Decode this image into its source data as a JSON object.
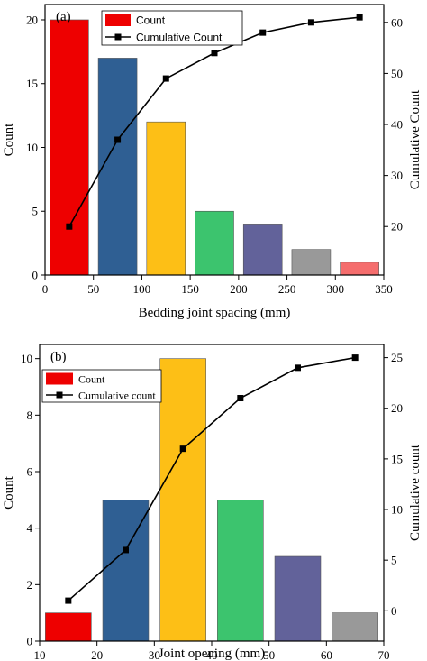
{
  "chart_data": [
    {
      "type": "bar",
      "panel_label": "(a)",
      "x": [
        25,
        75,
        125,
        175,
        225,
        275,
        325
      ],
      "bar_width": 40,
      "bar_colors": [
        "#ee0000",
        "#2f5f93",
        "#fdbf16",
        "#3cc46e",
        "#62629a",
        "#999999",
        "#f56d6d"
      ],
      "series": [
        {
          "name": "Count",
          "values": [
            20,
            17,
            12,
            5,
            4,
            2,
            1
          ]
        },
        {
          "name": "Cumulative Count",
          "values": [
            20,
            37,
            49,
            54,
            58,
            60,
            61
          ],
          "axis": "right",
          "type": "line"
        }
      ],
      "xlabel": "Bedding joint spacing (mm)",
      "ylabel": "Count",
      "y2label": "Cumulative Count",
      "xlim": [
        0,
        350
      ],
      "ylim": [
        0,
        21.2
      ],
      "y2lim": [
        10.5,
        63.5
      ],
      "xticks": [
        0,
        50,
        100,
        150,
        200,
        250,
        300,
        350
      ],
      "yticks": [
        0,
        5,
        10,
        15,
        20
      ],
      "y2ticks": [
        20,
        30,
        40,
        50,
        60
      ],
      "legend": [
        "Count",
        "Cumulative Count"
      ],
      "legend_placement": "top-center",
      "grid": false
    },
    {
      "type": "bar",
      "panel_label": "(b)",
      "x": [
        15,
        25,
        35,
        45,
        55,
        65
      ],
      "bar_width": 8,
      "bar_colors": [
        "#ee0000",
        "#2f5f93",
        "#fdbf16",
        "#3cc46e",
        "#62629a",
        "#999999"
      ],
      "series": [
        {
          "name": "Count",
          "values": [
            1,
            5,
            10,
            5,
            3,
            1
          ]
        },
        {
          "name": "Cumulative count",
          "values": [
            1,
            6,
            16,
            21,
            24,
            25
          ],
          "axis": "right",
          "type": "line"
        }
      ],
      "xlabel": "Joint opening (mm)",
      "ylabel": "Count",
      "y2label": "Cumulative count",
      "xlim": [
        10,
        70
      ],
      "ylim": [
        0,
        10.5
      ],
      "y2lim": [
        -3,
        26.3
      ],
      "xticks": [
        10,
        20,
        30,
        40,
        50,
        60,
        70
      ],
      "yticks": [
        0,
        2,
        4,
        6,
        8,
        10
      ],
      "y2ticks": [
        0,
        5,
        10,
        15,
        20,
        25
      ],
      "legend": [
        "Count",
        "Cumulative count"
      ],
      "legend_placement": "top-left",
      "grid": false
    }
  ]
}
